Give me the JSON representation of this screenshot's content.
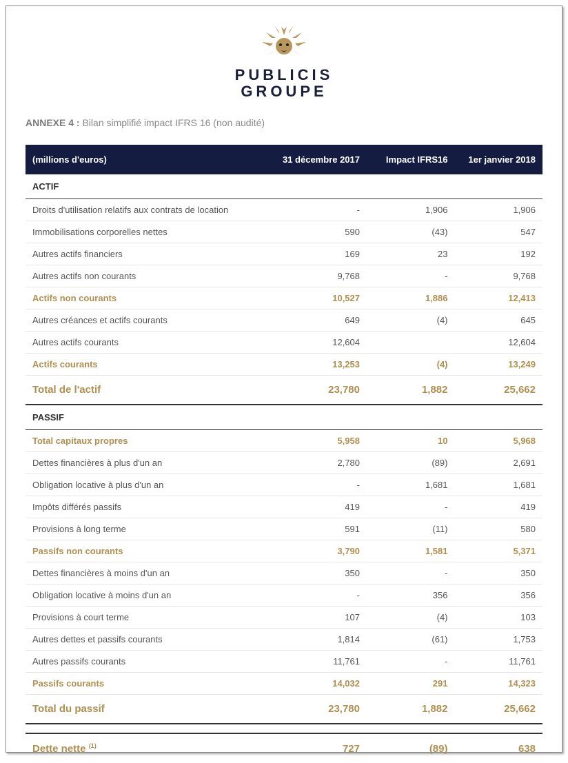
{
  "logo": {
    "line1": "PUBLICIS",
    "line2": "GROUPE"
  },
  "annex": {
    "label": "ANNEXE 4 :",
    "text": " Bilan simplifié impact IFRS 16 (non audité)"
  },
  "colors": {
    "header_bg": "#141c42",
    "gold": "#b08f4f",
    "text": "#555555",
    "border": "#e5e5e5",
    "strong_border": "#333333"
  },
  "table": {
    "headers": [
      "(millions d'euros)",
      "31 décembre 2017",
      "Impact IFRS16",
      "1er janvier 2018"
    ],
    "rows": [
      {
        "type": "section",
        "cells": [
          "ACTIF",
          "",
          "",
          ""
        ]
      },
      {
        "type": "normal",
        "cells": [
          "Droits d'utilisation relatifs aux contrats de location",
          "-",
          "1,906",
          "1,906"
        ]
      },
      {
        "type": "normal",
        "cells": [
          "Immobilisations corporelles nettes",
          "590",
          "(43)",
          "547"
        ]
      },
      {
        "type": "normal",
        "cells": [
          "Autres actifs financiers",
          "169",
          "23",
          "192"
        ]
      },
      {
        "type": "normal",
        "cells": [
          "Autres actifs non courants",
          "9,768",
          "-",
          "9,768"
        ]
      },
      {
        "type": "gold",
        "cells": [
          "Actifs non courants",
          "10,527",
          "1,886",
          "12,413"
        ]
      },
      {
        "type": "normal",
        "cells": [
          "Autres créances et actifs courants",
          "649",
          "(4)",
          "645"
        ]
      },
      {
        "type": "normal",
        "cells": [
          "Autres actifs courants",
          "12,604",
          "",
          "12,604"
        ]
      },
      {
        "type": "gold",
        "cells": [
          "Actifs courants",
          "13,253",
          "(4)",
          "13,249"
        ]
      },
      {
        "type": "gold-total",
        "cells": [
          "Total de l'actif",
          "23,780",
          "1,882",
          "25,662"
        ]
      },
      {
        "type": "section",
        "cells": [
          "PASSIF",
          "",
          "",
          ""
        ]
      },
      {
        "type": "gold",
        "cells": [
          "Total capitaux propres",
          "5,958",
          "10",
          "5,968"
        ]
      },
      {
        "type": "normal",
        "cells": [
          "Dettes financières à plus d'un an",
          "2,780",
          "(89)",
          "2,691"
        ]
      },
      {
        "type": "normal",
        "cells": [
          "Obligation locative à plus d'un an",
          "-",
          "1,681",
          "1,681"
        ]
      },
      {
        "type": "normal",
        "cells": [
          "Impôts différés passifs",
          "419",
          "-",
          "419"
        ]
      },
      {
        "type": "normal",
        "cells": [
          "Provisions à long terme",
          "591",
          "(11)",
          "580"
        ]
      },
      {
        "type": "gold",
        "cells": [
          "Passifs non courants",
          "3,790",
          "1,581",
          "5,371"
        ]
      },
      {
        "type": "normal",
        "cells": [
          "Dettes financières à moins d'un an",
          "350",
          "-",
          "350"
        ]
      },
      {
        "type": "normal",
        "cells": [
          "Obligation locative à moins d'un an",
          "-",
          "356",
          "356"
        ]
      },
      {
        "type": "normal",
        "cells": [
          "Provisions à court terme",
          "107",
          "(4)",
          "103"
        ]
      },
      {
        "type": "normal",
        "cells": [
          "Autres dettes et passifs courants",
          "1,814",
          "(61)",
          "1,753"
        ]
      },
      {
        "type": "normal",
        "cells": [
          "Autres passifs courants",
          "11,761",
          "-",
          "11,761"
        ]
      },
      {
        "type": "gold",
        "cells": [
          "Passifs courants",
          "14,032",
          "291",
          "14,323"
        ]
      },
      {
        "type": "gold-total",
        "cells": [
          "Total du passif",
          "23,780",
          "1,882",
          "25,662"
        ]
      },
      {
        "type": "spacer",
        "cells": [
          "",
          "",
          "",
          ""
        ]
      },
      {
        "type": "gold-total-last",
        "cells": [
          "Dette nette ",
          "727",
          "(89)",
          "638"
        ],
        "sup": "(1)"
      }
    ]
  }
}
